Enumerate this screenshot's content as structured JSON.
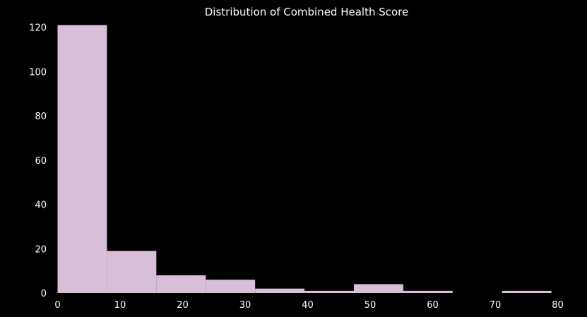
{
  "chart_data": {
    "type": "bar",
    "title": "Distribution of Combined Health Score",
    "xlabel": "",
    "ylabel": "",
    "bins": [
      {
        "start": 0.0,
        "end": 7.9,
        "count": 121
      },
      {
        "start": 7.9,
        "end": 15.8,
        "count": 19
      },
      {
        "start": 15.8,
        "end": 23.7,
        "count": 8
      },
      {
        "start": 23.7,
        "end": 31.6,
        "count": 6
      },
      {
        "start": 31.6,
        "end": 39.5,
        "count": 2
      },
      {
        "start": 39.5,
        "end": 47.4,
        "count": 1
      },
      {
        "start": 47.4,
        "end": 55.3,
        "count": 4
      },
      {
        "start": 55.3,
        "end": 63.2,
        "count": 1
      },
      {
        "start": 63.2,
        "end": 71.1,
        "count": 0
      },
      {
        "start": 71.1,
        "end": 79.0,
        "count": 1
      }
    ],
    "xlim": [
      0,
      80
    ],
    "ylim": [
      0,
      125
    ],
    "x_ticks": [
      "0",
      "10",
      "20",
      "30",
      "40",
      "50",
      "60",
      "70",
      "80"
    ],
    "y_ticks": [
      "0",
      "20",
      "40",
      "60",
      "80",
      "100",
      "120"
    ],
    "grid": false,
    "legend": "none",
    "colors": {
      "bar": "#d8bfd8",
      "background": "#000000",
      "text": "#ffffff"
    }
  }
}
